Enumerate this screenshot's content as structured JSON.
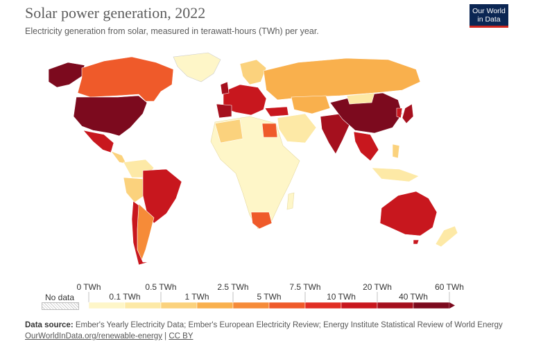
{
  "title": "Solar power generation, 2022",
  "subtitle": "Electricity generation from solar, measured in terawatt-hours (TWh) per year.",
  "logo": {
    "line1": "Our World",
    "line2": "in Data"
  },
  "legend": {
    "no_data_label": "No data",
    "upper_labels": [
      "0 TWh",
      "0.5 TWh",
      "2.5 TWh",
      "7.5 TWh",
      "20 TWh",
      "60 TWh"
    ],
    "lower_labels": [
      "0.1 TWh",
      "1 TWh",
      "5 TWh",
      "10 TWh",
      "40 TWh"
    ],
    "colors": [
      "#fef6c8",
      "#fde9a6",
      "#fbd27d",
      "#f9b04d",
      "#f68b38",
      "#ef5a2a",
      "#e12e24",
      "#c8171e",
      "#a5101e",
      "#7c0a1e"
    ]
  },
  "source": {
    "label": "Data source:",
    "text": "Ember's Yearly Electricity Data; Ember's European Electricity Review; Energy Institute Statistical Review of World Energy"
  },
  "links": {
    "url": "OurWorldInData.org/renewable-energy",
    "separator": "|",
    "license": "CC BY"
  },
  "map_regions": [
    {
      "name": "USA",
      "color": "#7c0a1e"
    },
    {
      "name": "Canada",
      "color": "#ef5a2a"
    },
    {
      "name": "Alaska",
      "color": "#7c0a1e"
    },
    {
      "name": "Greenland",
      "color": "#fef6c8"
    },
    {
      "name": "Mexico",
      "color": "#c8171e"
    },
    {
      "name": "Brazil",
      "color": "#c8171e"
    },
    {
      "name": "Chile",
      "color": "#c8171e"
    },
    {
      "name": "Argentina",
      "color": "#f68b38"
    },
    {
      "name": "Russia",
      "color": "#f9b04d"
    },
    {
      "name": "China",
      "color": "#7c0a1e"
    },
    {
      "name": "India",
      "color": "#a5101e"
    },
    {
      "name": "Australia",
      "color": "#c8171e"
    },
    {
      "name": "Japan",
      "color": "#a5101e"
    },
    {
      "name": "Europe",
      "color": "#c8171e"
    },
    {
      "name": "Africa",
      "color": "#fef6c8"
    },
    {
      "name": "South Africa",
      "color": "#ef5a2a"
    },
    {
      "name": "Egypt",
      "color": "#ef5a2a"
    },
    {
      "name": "Kazakhstan",
      "color": "#f9b04d"
    },
    {
      "name": "Vietnam",
      "color": "#c8171e"
    }
  ]
}
